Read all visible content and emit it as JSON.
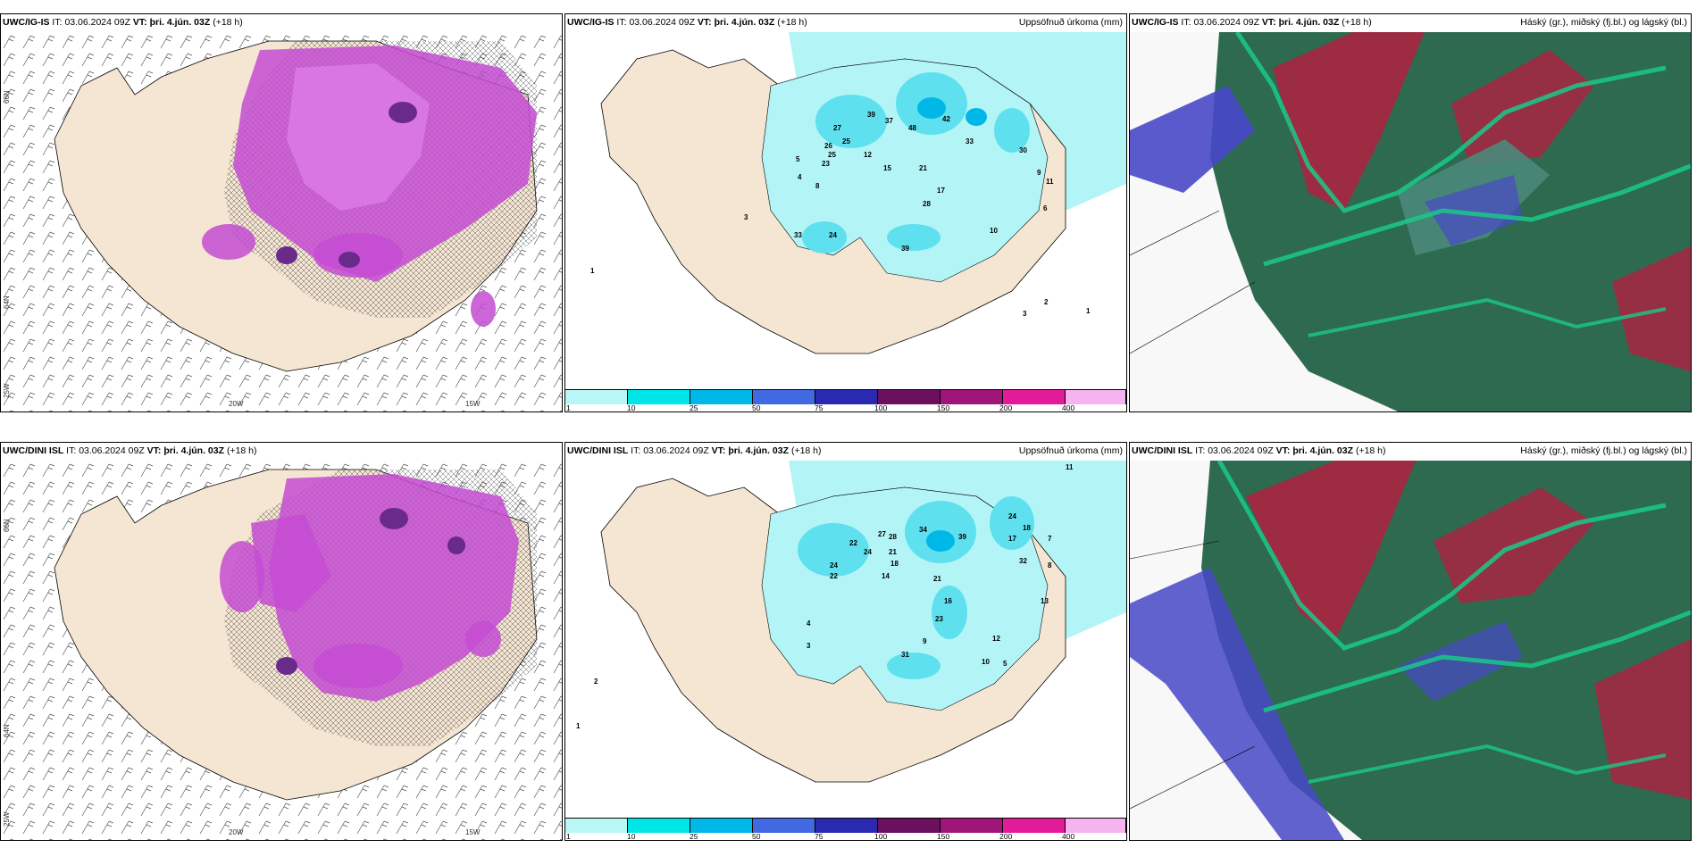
{
  "panels": [
    {
      "model": "UWC/IG-IS",
      "it_label": "IT:",
      "it_value": "03.06.2024 09Z",
      "vt_label": "VT:",
      "vt_value": "þri. 4.jún. 03Z",
      "lead": "(+18 h)",
      "title_right": ""
    },
    {
      "model": "UWC/IG-IS",
      "it_label": "IT:",
      "it_value": "03.06.2024 09Z",
      "vt_label": "VT:",
      "vt_value": "þri. 4.jún. 03Z",
      "lead": "(+18 h)",
      "title_right": "Uppsöfnuð úrkoma (mm)"
    },
    {
      "model": "UWC/IG-IS",
      "it_label": "IT:",
      "it_value": "03.06.2024 09Z",
      "vt_label": "VT:",
      "vt_value": "þri. 4.jún. 03Z",
      "lead": "(+18 h)",
      "title_right": "Háský (gr.), miðský (fj.bl.) og lágský (bl.)"
    },
    {
      "model": "UWC/DINI ISL",
      "it_label": "IT:",
      "it_value": "03.06.2024 09Z",
      "vt_label": "VT:",
      "vt_value": "þri. 4.jún. 03Z",
      "lead": "(+18 h)",
      "title_right": ""
    },
    {
      "model": "UWC/DINI ISL",
      "it_label": "IT:",
      "it_value": "03.06.2024 09Z",
      "vt_label": "VT:",
      "vt_value": "þri. 4.jún. 03Z",
      "lead": "(+18 h)",
      "title_right": "Uppsöfnuð úrkoma (mm)"
    },
    {
      "model": "UWC/DINI ISL",
      "it_label": "IT:",
      "it_value": "03.06.2024 09Z",
      "vt_label": "VT:",
      "vt_value": "þri. 4.jún. 03Z",
      "lead": "(+18 h)",
      "title_right": "Háský (gr.), miðský (fj.bl.) og lágský (bl.)"
    }
  ],
  "axes": {
    "lon1": "20W",
    "lon2": "15W",
    "lat1": "66N",
    "lat2": "64N",
    "lat3": "25W"
  },
  "legend": {
    "labels": [
      "1",
      "10",
      "25",
      "50",
      "75",
      "100",
      "150",
      "200",
      "400"
    ],
    "colors": [
      "#b9f7f7",
      "#00e5e8",
      "#00b8e8",
      "#4169e1",
      "#2a2ab0",
      "#6b0f5e",
      "#a0157a",
      "#e31b9a",
      "#f5b3f0"
    ]
  },
  "colors": {
    "land": "#f5e6d3",
    "sea": "#ffffff",
    "precip_light": "#b3f5f7",
    "precip_mid": "#5fe0ee",
    "conv": "#b44ec8",
    "conv_light": "#e07ae8",
    "cloud_high": "#2e6a4f",
    "cloud_mid": "#b02040",
    "cloud_low": "#4848c8"
  },
  "precip_values_top": [
    "27",
    "39",
    "37",
    "48",
    "42",
    "33",
    "25",
    "26",
    "25",
    "23",
    "12",
    "15",
    "21",
    "17",
    "28",
    "24",
    "39",
    "30",
    "33",
    "8",
    "5",
    "4",
    "3",
    "1",
    "2",
    "1",
    "6",
    "9",
    "11",
    "10",
    "3"
  ],
  "precip_values_bottom": [
    "22",
    "27",
    "28",
    "34",
    "39",
    "24",
    "17",
    "18",
    "24",
    "21",
    "24",
    "18",
    "22",
    "14",
    "21",
    "16",
    "23",
    "31",
    "9",
    "32",
    "13",
    "12",
    "10",
    "4",
    "3",
    "2",
    "1",
    "7",
    "8",
    "11",
    "5"
  ]
}
